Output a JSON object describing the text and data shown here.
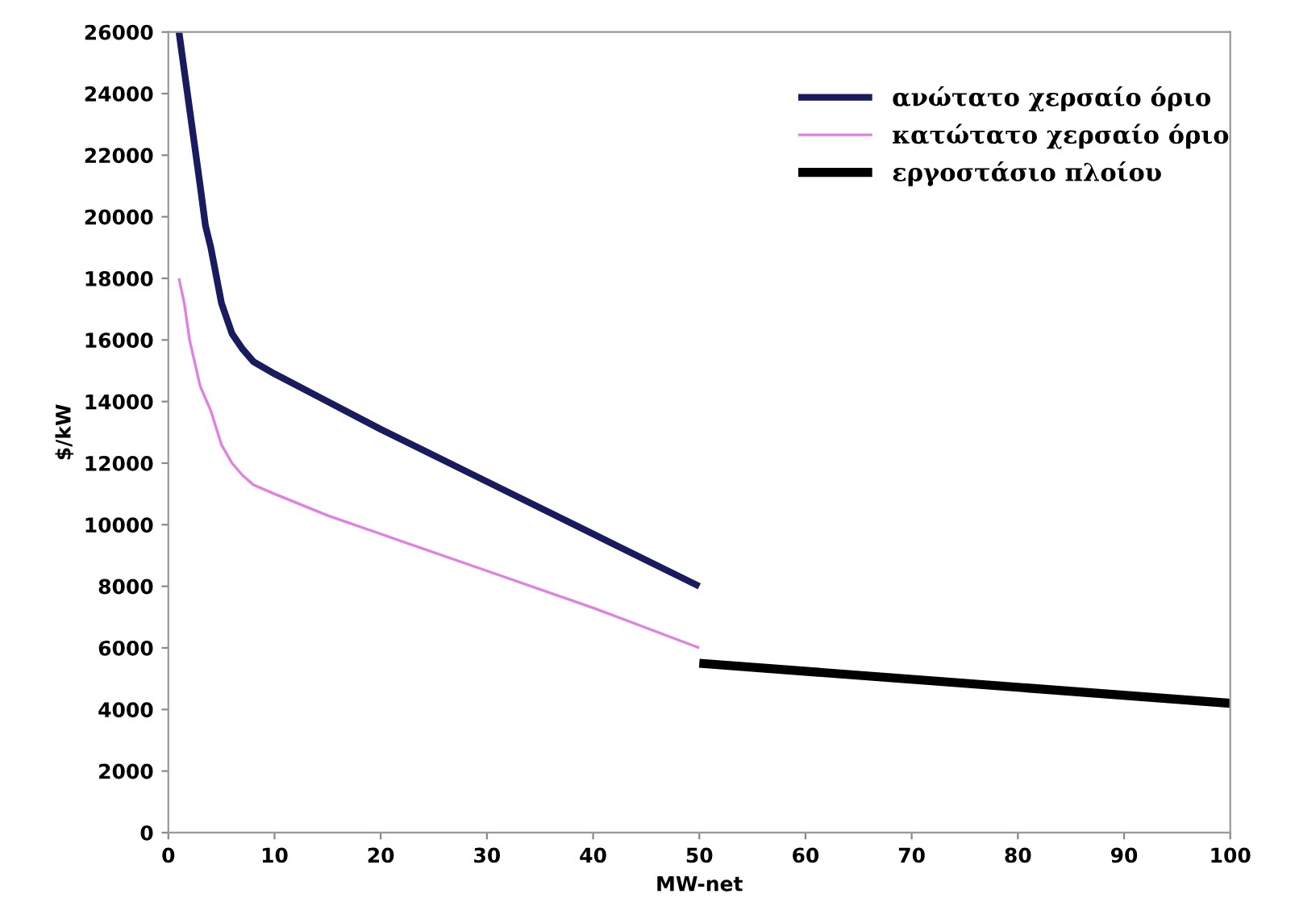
{
  "chart_data": {
    "type": "line",
    "xlabel": "MW-net",
    "ylabel": "$/kW",
    "xlim": [
      0,
      100
    ],
    "ylim": [
      0,
      26000
    ],
    "xticks": [
      0,
      10,
      20,
      30,
      40,
      50,
      60,
      70,
      80,
      90,
      100
    ],
    "yticks": [
      0,
      2000,
      4000,
      6000,
      8000,
      10000,
      12000,
      14000,
      16000,
      18000,
      20000,
      22000,
      24000,
      26000
    ],
    "grid": false,
    "legend": "top right",
    "marker": "none",
    "line_style": "solid",
    "series": [
      {
        "name": "ανώτατο χερσαίο όριο",
        "color": "#1a1a5e",
        "x": [
          1,
          2,
          3,
          3.5,
          4,
          5,
          6,
          7,
          8,
          10,
          15,
          20,
          30,
          40,
          50
        ],
        "values": [
          26000,
          23500,
          21000,
          19700,
          19000,
          17200,
          16200,
          15700,
          15300,
          14900,
          14000,
          13100,
          11400,
          9700,
          8000
        ]
      },
      {
        "name": "κατώτατο χερσαίο όριο",
        "color": "#e080e0",
        "x": [
          1,
          1.5,
          2,
          3,
          4,
          5,
          6,
          7,
          8,
          10,
          15,
          20,
          30,
          40,
          50
        ],
        "values": [
          18000,
          17200,
          16000,
          14500,
          13700,
          12600,
          12000,
          11600,
          11300,
          11000,
          10300,
          9700,
          8500,
          7300,
          6000
        ]
      },
      {
        "name": "εργοστάσιο πλοίου",
        "color": "#000000",
        "x": [
          50,
          100
        ],
        "values": [
          5500,
          4200
        ]
      }
    ]
  }
}
